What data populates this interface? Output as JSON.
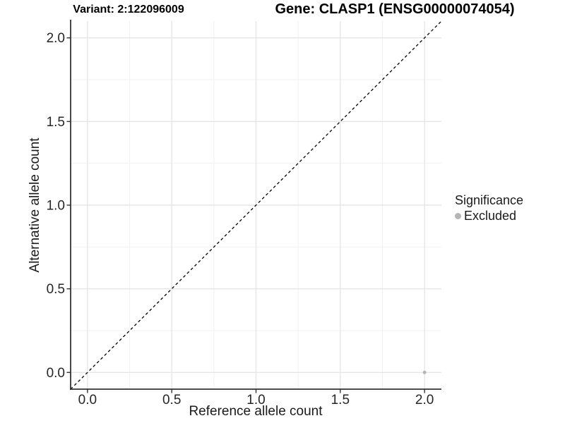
{
  "header": {
    "variant_title": "Variant: 2:122096009",
    "gene_title": "Gene: CLASP1 (ENSG00000074054)"
  },
  "chart_data": {
    "type": "scatter",
    "title": "Variant: 2:122096009  |  Gene: CLASP1 (ENSG00000074054)",
    "xlabel": "Reference allele count",
    "ylabel": "Alternative allele count",
    "xlim": [
      -0.1,
      2.1
    ],
    "ylim": [
      -0.1,
      2.1
    ],
    "x_ticks": [
      0.0,
      0.5,
      1.0,
      1.5,
      2.0
    ],
    "y_ticks": [
      0.0,
      0.5,
      1.0,
      1.5,
      2.0
    ],
    "x_tick_labels": [
      "0.0",
      "0.5",
      "1.0",
      "1.5",
      "2.0"
    ],
    "y_tick_labels": [
      "0.0",
      "0.5",
      "1.0",
      "1.5",
      "2.0"
    ],
    "grid": "major-and-minor",
    "reference_line": {
      "kind": "identity",
      "style": "dashed",
      "from": [
        -0.1,
        -0.1
      ],
      "to": [
        2.1,
        2.1
      ]
    },
    "series": [
      {
        "name": "Excluded",
        "color": "#b5b5b5",
        "points": [
          [
            2.0,
            0.0
          ]
        ]
      }
    ],
    "legend": {
      "title": "Significance",
      "position": "right",
      "entries": [
        {
          "label": "Excluded",
          "color": "#b5b5b5"
        }
      ]
    }
  },
  "colors": {
    "background": "#ffffff",
    "grid_major": "#e6e6e6",
    "grid_minor": "#f1f1f1",
    "axis_line": "#333333",
    "tick_mark": "#333333",
    "tick_text": "#262626",
    "reference_line": "#000000",
    "excluded_point": "#b5b5b5"
  }
}
